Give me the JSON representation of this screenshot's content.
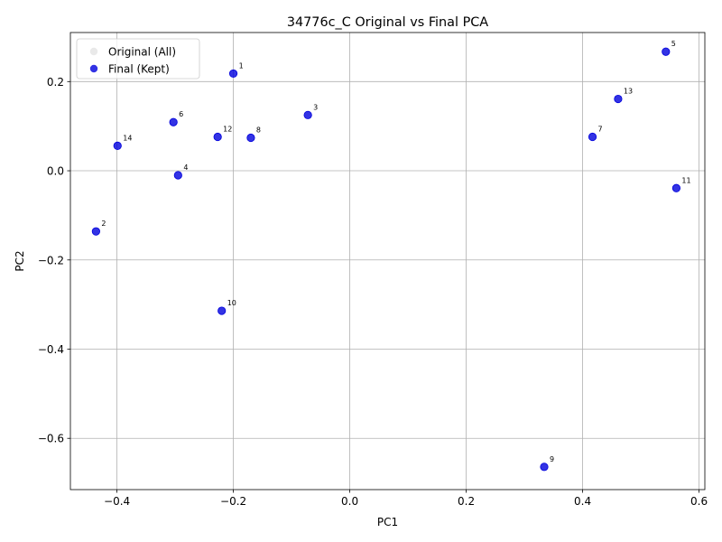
{
  "chart_data": {
    "type": "scatter",
    "title": "34776c_C Original vs Final PCA",
    "xlabel": "PC1",
    "ylabel": "PC2",
    "xlim": [
      -0.48,
      0.61
    ],
    "ylim": [
      -0.715,
      0.31
    ],
    "xticks": [
      -0.4,
      -0.2,
      0.0,
      0.2,
      0.4,
      0.6
    ],
    "xtick_labels": [
      "−0.4",
      "−0.2",
      "0.0",
      "0.2",
      "0.4",
      "0.6"
    ],
    "yticks": [
      -0.6,
      -0.4,
      -0.2,
      0.0,
      0.2
    ],
    "ytick_labels": [
      "−0.6",
      "−0.4",
      "−0.2",
      "0.0",
      "0.2"
    ],
    "grid": true,
    "legend_position": "top-left",
    "series": [
      {
        "name": "Original (All)",
        "color": "#e0e0e0",
        "points": []
      },
      {
        "name": "Final (Kept)",
        "color": "#0000dd",
        "points": [
          {
            "label": "1",
            "x": -0.2,
            "y": 0.218
          },
          {
            "label": "2",
            "x": -0.436,
            "y": -0.136
          },
          {
            "label": "3",
            "x": -0.072,
            "y": 0.125
          },
          {
            "label": "4",
            "x": -0.295,
            "y": -0.01
          },
          {
            "label": "5",
            "x": 0.543,
            "y": 0.267
          },
          {
            "label": "6",
            "x": -0.303,
            "y": 0.109
          },
          {
            "label": "7",
            "x": 0.417,
            "y": 0.076
          },
          {
            "label": "8",
            "x": -0.17,
            "y": 0.074
          },
          {
            "label": "9",
            "x": 0.334,
            "y": -0.664
          },
          {
            "label": "10",
            "x": -0.22,
            "y": -0.314
          },
          {
            "label": "11",
            "x": 0.561,
            "y": -0.039
          },
          {
            "label": "12",
            "x": -0.227,
            "y": 0.076
          },
          {
            "label": "13",
            "x": 0.461,
            "y": 0.161
          },
          {
            "label": "14",
            "x": -0.399,
            "y": 0.056
          }
        ]
      }
    ]
  }
}
